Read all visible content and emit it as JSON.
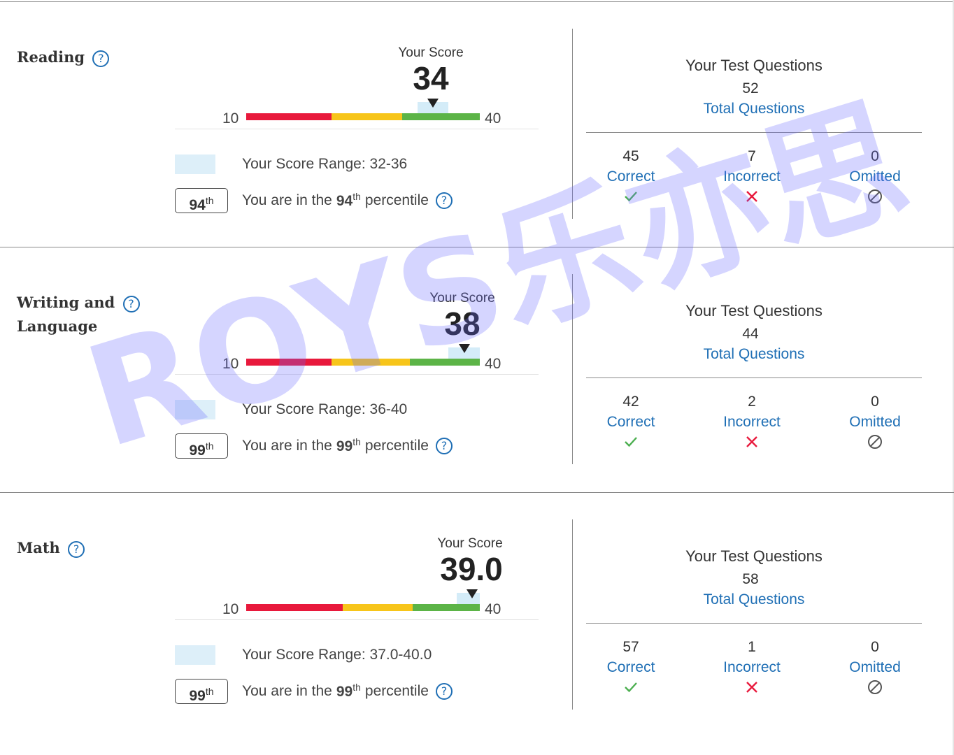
{
  "score_label": "Your Score",
  "scale": {
    "min": "10",
    "max": "40"
  },
  "range_prefix": "Your Score Range: ",
  "percentile_text": {
    "before": "You are in the",
    "suffix": "th",
    "after": "percentile"
  },
  "questions": {
    "title": "Your Test Questions",
    "total_label": "Total Questions",
    "correct_label": "Correct",
    "incorrect_label": "Incorrect",
    "omitted_label": "Omitted"
  },
  "colors": {
    "red": "#e8193c",
    "yellow": "#f7c51a",
    "green": "#5cb447",
    "accent": "#1f6fb5"
  },
  "sections": [
    {
      "title_lines": [
        "Reading"
      ],
      "score": "34",
      "score_value": 34,
      "range": "32-36",
      "range_low": 32,
      "range_high": 36,
      "band_breaks": [
        21,
        30
      ],
      "percentile": "94",
      "total": "52",
      "correct": "45",
      "incorrect": "7",
      "omitted": "0"
    },
    {
      "title_lines": [
        "Writing and",
        "Language"
      ],
      "score": "38",
      "score_value": 38,
      "range": "36-40",
      "range_low": 36,
      "range_high": 40,
      "band_breaks": [
        21,
        31
      ],
      "percentile": "99",
      "total": "44",
      "correct": "42",
      "incorrect": "2",
      "omitted": "0"
    },
    {
      "title_lines": [
        "Math"
      ],
      "score": "39.0",
      "score_value": 39,
      "range": "37.0-40.0",
      "range_low": 37,
      "range_high": 40,
      "band_breaks": [
        22.4,
        31.4
      ],
      "percentile": "99",
      "total": "58",
      "correct": "57",
      "incorrect": "1",
      "omitted": "0"
    }
  ],
  "watermark": "ROYS乐亦思"
}
